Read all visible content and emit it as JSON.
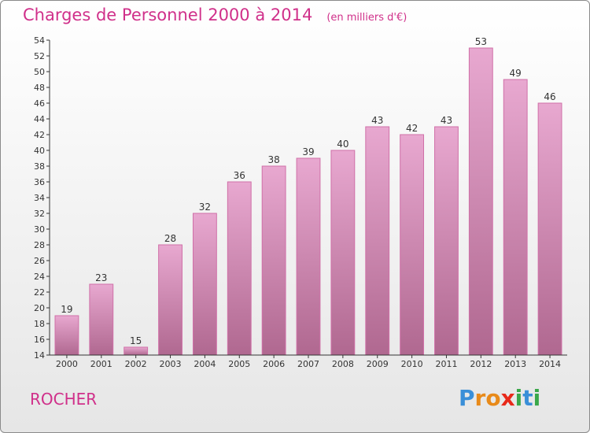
{
  "page": {
    "title": "Charges de Personnel 2000 à 2014",
    "subtitle": "(en milliers d'€)",
    "commune": "ROCHER",
    "logo_letters": [
      "P",
      "r",
      "o",
      "x",
      "i",
      "t",
      "i"
    ],
    "logo_colors": [
      "#3a8fd8",
      "#e88a1a",
      "#e88a1a",
      "#e8291a",
      "#3aa84a",
      "#3a8fd8",
      "#3aa84a"
    ]
  },
  "colors": {
    "accent": "#d0308a",
    "bar_top": "#e8a8d0",
    "bar_bottom": "#b06890",
    "axis": "#333333"
  },
  "chart_data": {
    "type": "bar",
    "title": "Charges de Personnel 2000 à 2014",
    "subtitle": "(en milliers d'€)",
    "xlabel": "",
    "ylabel": "",
    "categories": [
      "2000",
      "2001",
      "2002",
      "2003",
      "2004",
      "2005",
      "2006",
      "2007",
      "2008",
      "2009",
      "2010",
      "2011",
      "2012",
      "2013",
      "2014"
    ],
    "values": [
      19,
      23,
      15,
      28,
      32,
      36,
      38,
      39,
      40,
      43,
      42,
      43,
      53,
      49,
      46
    ],
    "ylim": [
      14,
      54
    ],
    "yticks": [
      14,
      16,
      18,
      20,
      22,
      24,
      26,
      28,
      30,
      32,
      34,
      36,
      38,
      40,
      42,
      44,
      46,
      48,
      50,
      52,
      54
    ],
    "grid": false
  }
}
